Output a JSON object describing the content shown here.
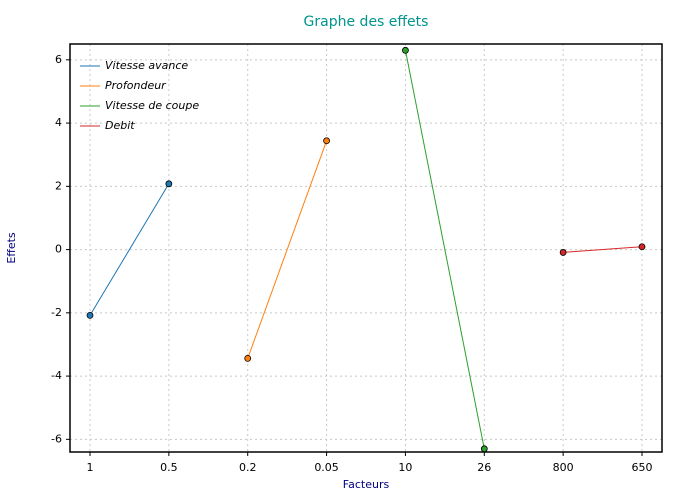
{
  "chart_data": {
    "type": "line",
    "title": "Graphe des effets",
    "xlabel": "Facteurs",
    "ylabel": "Effets",
    "categories": [
      "1",
      "0.5",
      "0.2",
      "0.05",
      "10",
      "26",
      "800",
      "650"
    ],
    "series": [
      {
        "name": "Vitesse avance",
        "color": "#1f77b4",
        "values": [
          -2.08,
          2.08,
          null,
          null,
          null,
          null,
          null,
          null
        ]
      },
      {
        "name": "Profondeur",
        "color": "#ff7f0e",
        "values": [
          null,
          null,
          -3.44,
          3.44,
          null,
          null,
          null,
          null
        ]
      },
      {
        "name": "Vitesse de coupe",
        "color": "#2ca02c",
        "values": [
          null,
          null,
          null,
          null,
          6.3,
          -6.3,
          null,
          null
        ]
      },
      {
        "name": "Debit",
        "color": "#d62728",
        "values": [
          null,
          null,
          null,
          null,
          null,
          null,
          -0.09,
          0.09
        ]
      }
    ],
    "ylim": [
      -6.4,
      6.5
    ],
    "yticks": [
      -6,
      -4,
      -2,
      0,
      2,
      4,
      6
    ],
    "grid": true,
    "legend": "upper left"
  }
}
